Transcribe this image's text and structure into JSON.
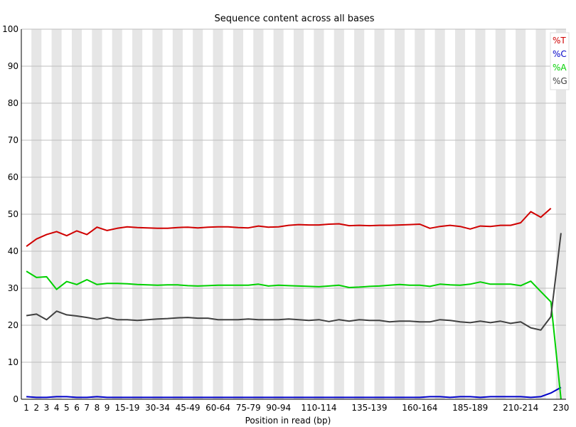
{
  "chart_data": {
    "type": "line",
    "title": "Sequence content across all bases",
    "xlabel": "Position in read (bp)",
    "ylabel": "",
    "ylim": [
      0,
      100
    ],
    "yticks": [
      0,
      10,
      20,
      30,
      40,
      50,
      60,
      70,
      80,
      90,
      100
    ],
    "categories": [
      "1",
      "2",
      "3",
      "4",
      "5",
      "6",
      "7",
      "8",
      "9",
      "10-14",
      "15-19",
      "20-24",
      "25-29",
      "30-34",
      "35-39",
      "40-44",
      "45-49",
      "50-54",
      "55-59",
      "60-64",
      "65-69",
      "70-74",
      "75-79",
      "80-84",
      "85-89",
      "90-94",
      "95-99",
      "100-104",
      "105-109",
      "110-114",
      "115-119",
      "120-124",
      "125-129",
      "130-134",
      "135-139",
      "140-144",
      "145-149",
      "150-154",
      "155-159",
      "160-164",
      "165-169",
      "170-174",
      "175-179",
      "180-184",
      "185-189",
      "190-194",
      "195-199",
      "200-204",
      "205-209",
      "210-214",
      "215-219",
      "220-224",
      "225-229",
      "230"
    ],
    "xtick_labels": [
      "1",
      "2",
      "3",
      "4",
      "5",
      "6",
      "7",
      "8",
      "9",
      "15-19",
      "30-34",
      "45-49",
      "60-64",
      "75-79",
      "90-94",
      "110-114",
      "135-139",
      "160-164",
      "185-189",
      "210-214",
      "230"
    ],
    "grid": "alternating vertical bands",
    "legend_position": "top-right",
    "series": [
      {
        "name": "%T",
        "color": "#d00000",
        "values": [
          41.3,
          43.3,
          44.5,
          45.3,
          44.2,
          45.5,
          44.5,
          46.5,
          45.6,
          46.2,
          46.6,
          46.4,
          46.3,
          46.2,
          46.2,
          46.4,
          46.5,
          46.3,
          46.5,
          46.6,
          46.6,
          46.4,
          46.3,
          46.8,
          46.5,
          46.6,
          47.0,
          47.2,
          47.1,
          47.1,
          47.3,
          47.4,
          46.9,
          47.0,
          46.9,
          47.0,
          47.0,
          47.1,
          47.2,
          47.3,
          46.2,
          46.7,
          47.0,
          46.7,
          46.0,
          46.8,
          46.7,
          47.0,
          47.0,
          47.7,
          50.7,
          49.2,
          51.6,
          null
        ]
      },
      {
        "name": "%C",
        "color": "#0000c8",
        "values": [
          0.7,
          0.5,
          0.5,
          0.7,
          0.7,
          0.5,
          0.5,
          0.7,
          0.5,
          0.5,
          0.5,
          0.5,
          0.5,
          0.5,
          0.5,
          0.5,
          0.5,
          0.5,
          0.5,
          0.5,
          0.5,
          0.5,
          0.5,
          0.5,
          0.5,
          0.5,
          0.5,
          0.5,
          0.5,
          0.5,
          0.5,
          0.5,
          0.5,
          0.5,
          0.5,
          0.5,
          0.5,
          0.5,
          0.5,
          0.5,
          0.7,
          0.7,
          0.5,
          0.7,
          0.7,
          0.5,
          0.7,
          0.7,
          0.7,
          0.7,
          0.5,
          0.7,
          1.7,
          3.2
        ]
      },
      {
        "name": "%A",
        "color": "#00d000",
        "values": [
          34.6,
          32.9,
          33.1,
          29.7,
          31.8,
          31.0,
          32.3,
          31.0,
          31.3,
          31.3,
          31.2,
          31.0,
          30.9,
          30.8,
          30.9,
          30.9,
          30.7,
          30.6,
          30.7,
          30.8,
          30.8,
          30.8,
          30.8,
          31.1,
          30.6,
          30.8,
          30.7,
          30.6,
          30.5,
          30.4,
          30.6,
          30.8,
          30.2,
          30.3,
          30.5,
          30.6,
          30.8,
          31.0,
          30.8,
          30.8,
          30.5,
          31.1,
          30.9,
          30.8,
          31.1,
          31.7,
          31.1,
          31.1,
          31.1,
          30.7,
          31.9,
          29.1,
          26.3,
          0.0
        ]
      },
      {
        "name": "%G",
        "color": "#404040",
        "values": [
          22.6,
          23.0,
          21.5,
          23.8,
          22.8,
          22.5,
          22.1,
          21.6,
          22.1,
          21.5,
          21.5,
          21.3,
          21.5,
          21.7,
          21.8,
          22.0,
          22.1,
          21.9,
          21.9,
          21.5,
          21.5,
          21.5,
          21.7,
          21.5,
          21.5,
          21.5,
          21.7,
          21.5,
          21.3,
          21.5,
          21.0,
          21.5,
          21.1,
          21.5,
          21.3,
          21.3,
          20.9,
          21.1,
          21.1,
          20.9,
          20.9,
          21.5,
          21.3,
          20.9,
          20.7,
          21.1,
          20.7,
          21.1,
          20.5,
          20.9,
          19.3,
          18.7,
          22.3,
          44.9
        ]
      }
    ]
  }
}
